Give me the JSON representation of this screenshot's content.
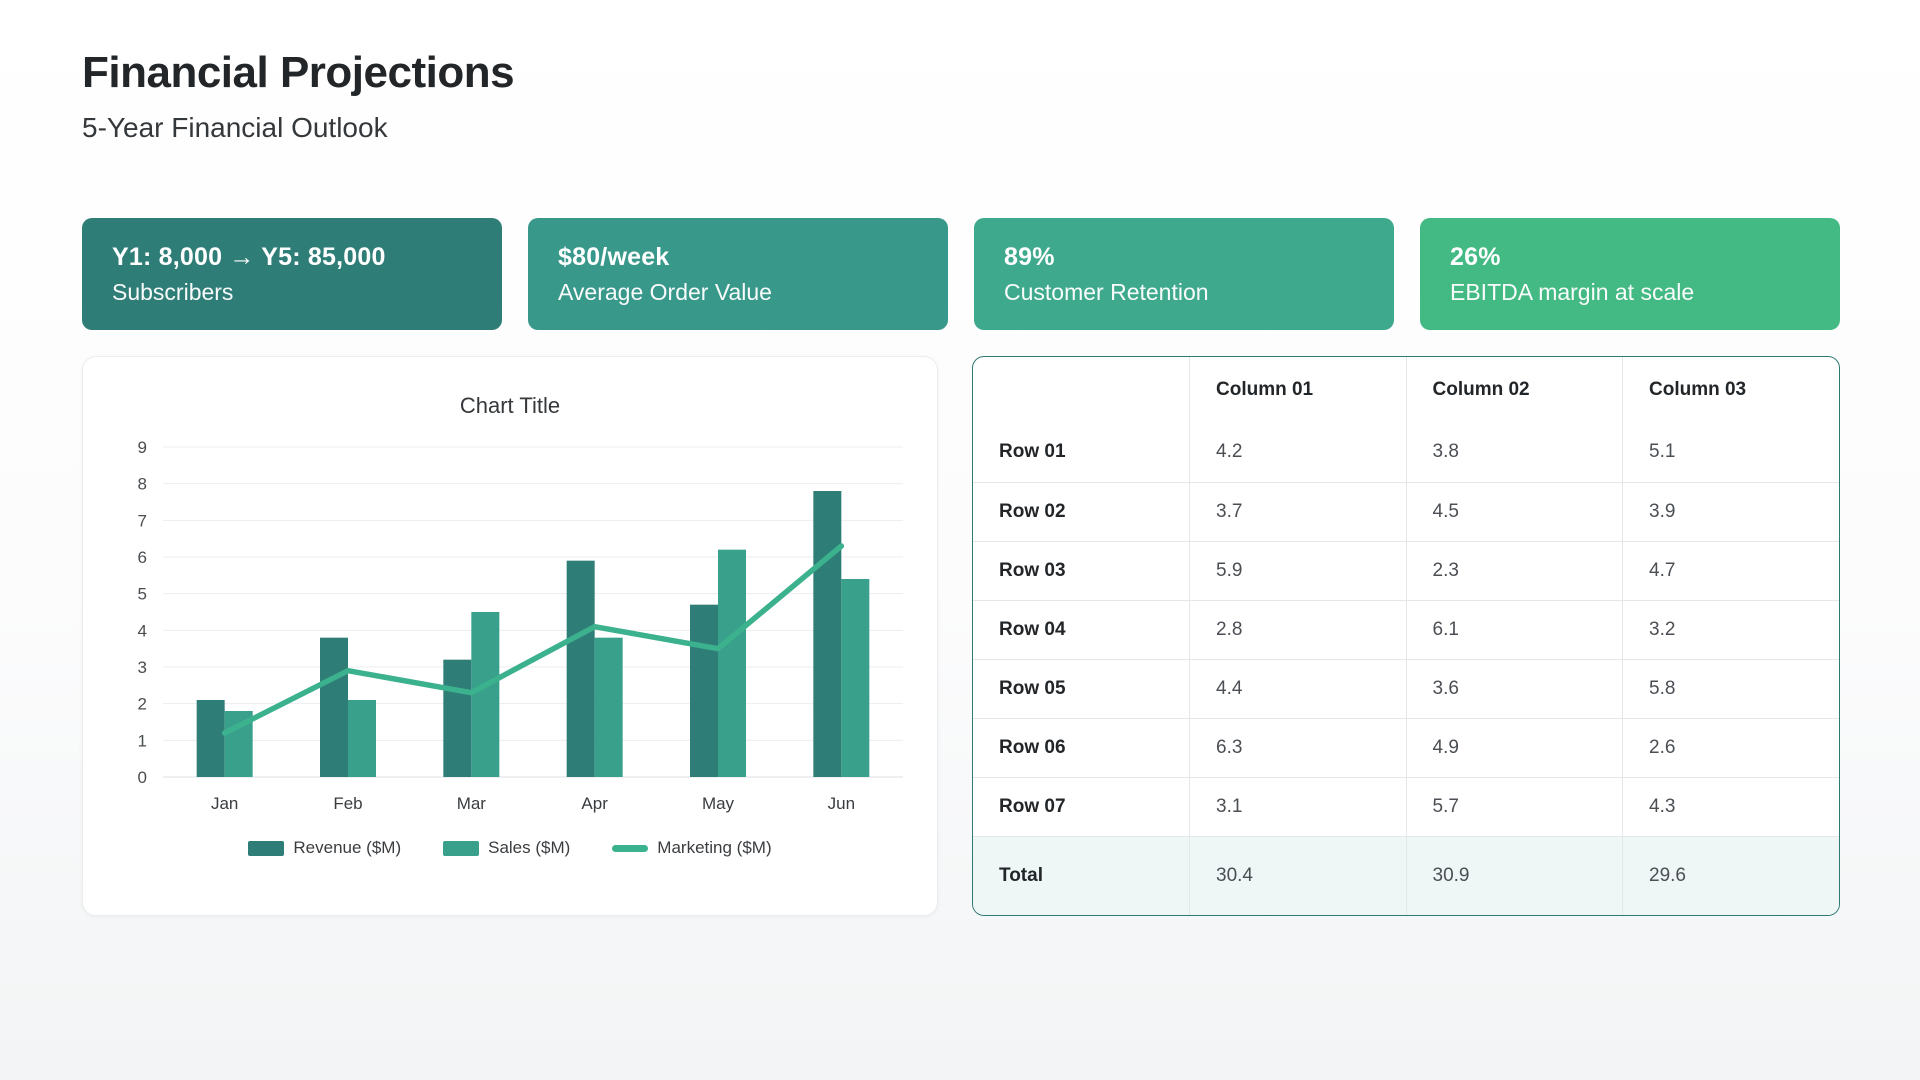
{
  "header": {
    "title": "Financial Projections",
    "subtitle": "5-Year Financial Outlook"
  },
  "stats": {
    "cards": [
      {
        "value": "Y1: 8,000 → Y5: 85,000",
        "label": "Subscribers",
        "color": "#2f7d77"
      },
      {
        "value": "$80/week",
        "label": "Average Order Value",
        "color": "#38988a"
      },
      {
        "value": "89%",
        "label": "Customer Retention",
        "color": "#3ea98c"
      },
      {
        "value": "26%",
        "label": "EBITDA margin at scale",
        "color": "#43b983"
      }
    ]
  },
  "chart_data": {
    "type": "bar",
    "title": "Chart Title",
    "categories": [
      "Jan",
      "Feb",
      "Mar",
      "Apr",
      "May",
      "Jun"
    ],
    "series": [
      {
        "name": "Revenue ($M)",
        "type": "bar",
        "color": "#2f7d77",
        "values": [
          2.1,
          3.8,
          3.2,
          5.9,
          4.7,
          7.8
        ]
      },
      {
        "name": "Sales ($M)",
        "type": "bar",
        "color": "#38a08b",
        "values": [
          1.8,
          2.1,
          4.5,
          3.8,
          6.2,
          5.4
        ]
      },
      {
        "name": "Marketing ($M)",
        "type": "line",
        "color": "#3cb18e",
        "values": [
          1.2,
          2.9,
          2.3,
          4.1,
          3.5,
          6.3
        ]
      }
    ],
    "ylim": [
      0,
      9
    ],
    "yticks": [
      0,
      1,
      2,
      3,
      4,
      5,
      6,
      7,
      8,
      9
    ],
    "grid": true,
    "legend_position": "bottom"
  },
  "table": {
    "columns": [
      "",
      "Column 01",
      "Column 02",
      "Column 03"
    ],
    "rows": [
      {
        "label": "Row 01",
        "values": [
          "4.2",
          "3.8",
          "5.1"
        ]
      },
      {
        "label": "Row 02",
        "values": [
          "3.7",
          "4.5",
          "3.9"
        ]
      },
      {
        "label": "Row 03",
        "values": [
          "5.9",
          "2.3",
          "4.7"
        ]
      },
      {
        "label": "Row 04",
        "values": [
          "2.8",
          "6.1",
          "3.2"
        ]
      },
      {
        "label": "Row 05",
        "values": [
          "4.4",
          "3.6",
          "5.8"
        ]
      },
      {
        "label": "Row 06",
        "values": [
          "6.3",
          "4.9",
          "2.6"
        ]
      },
      {
        "label": "Row 07",
        "values": [
          "3.1",
          "5.7",
          "4.3"
        ]
      },
      {
        "label": "Total",
        "values": [
          "30.4",
          "30.9",
          "29.6"
        ]
      }
    ]
  }
}
